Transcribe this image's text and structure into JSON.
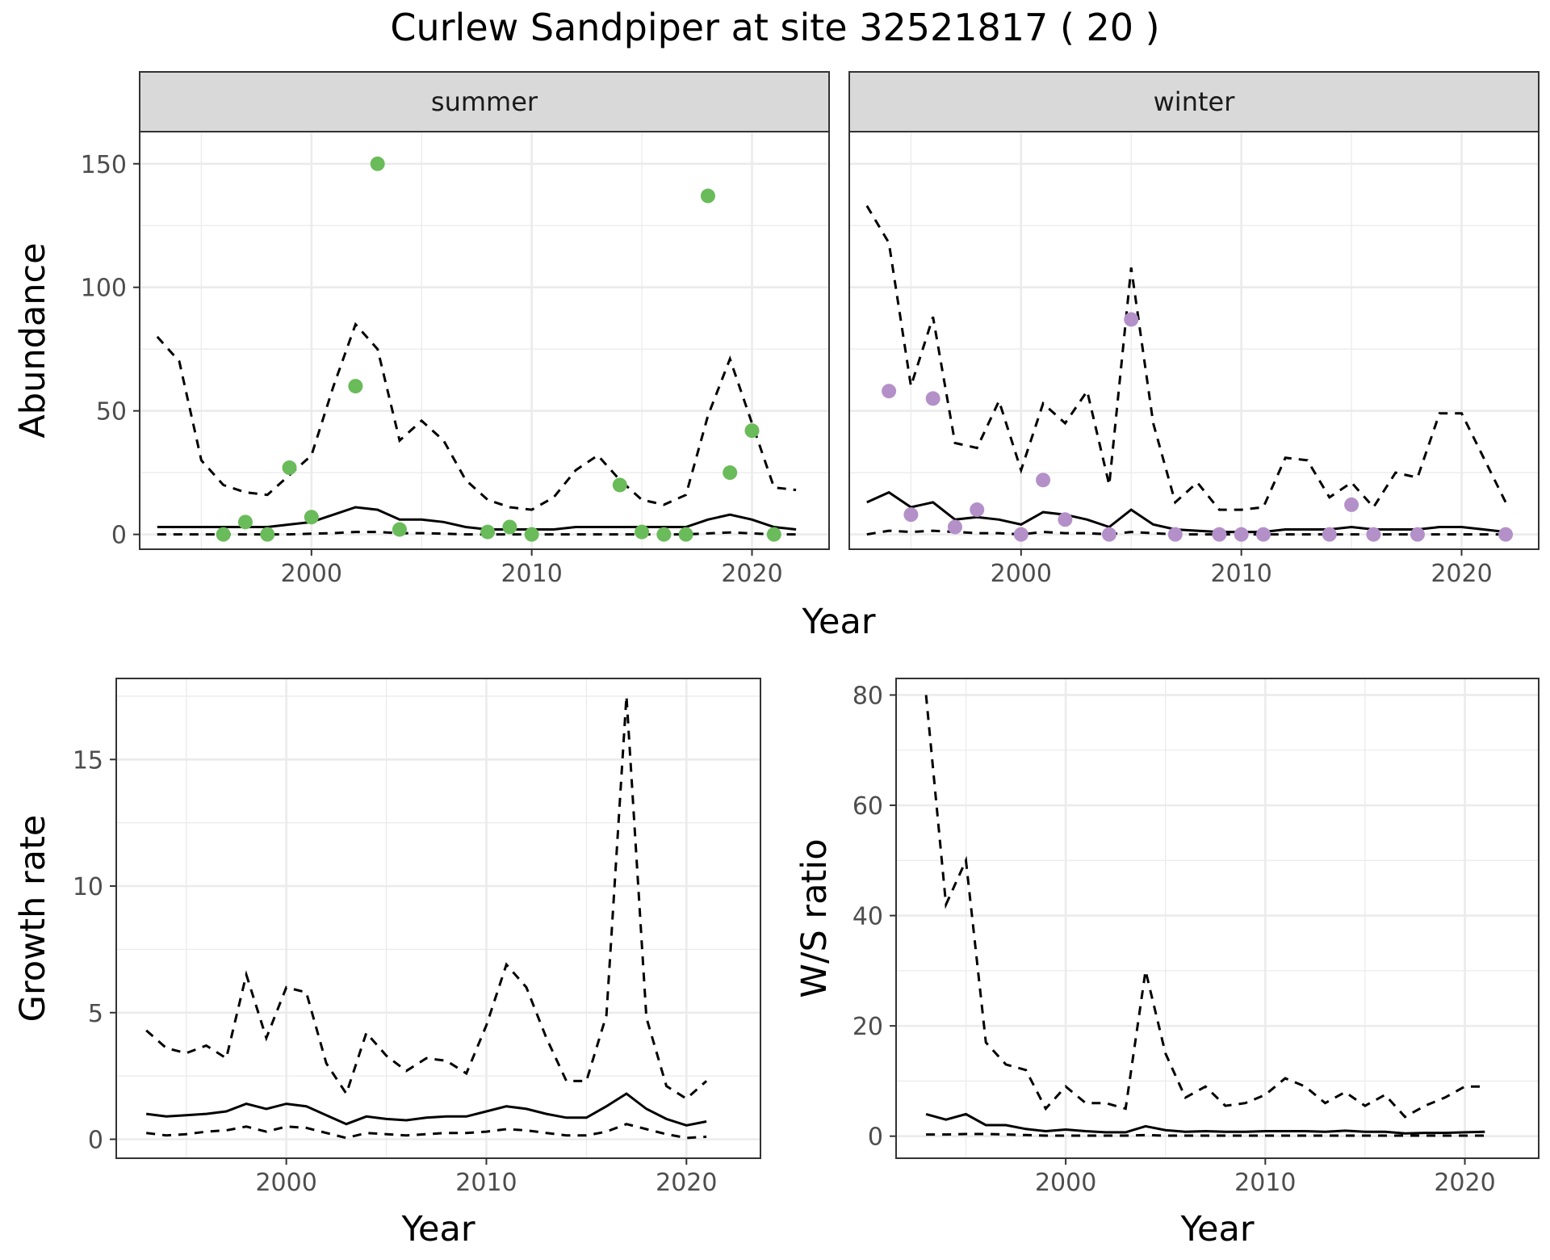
{
  "title": "Curlew Sandpiper at site 32521817 ( 20 )",
  "colors": {
    "summer_points": "#6abb5a",
    "winter_points": "#b490c9",
    "lines": "#000000"
  },
  "chart_data": [
    {
      "type": "line",
      "facet": "summer",
      "ylabel": "Abundance",
      "xlabel": "Year",
      "xlim": [
        1992.2,
        2023.5
      ],
      "ylim": [
        -6,
        163
      ],
      "xticks": [
        2000,
        2010,
        2020
      ],
      "yticks": [
        0,
        50,
        100,
        150
      ],
      "grid": true,
      "lines": [
        {
          "style": "dashed",
          "x": [
            1993,
            1994,
            1995,
            1996,
            1997,
            1998,
            1999,
            2000,
            2001,
            2002,
            2003,
            2004,
            2005,
            2006,
            2007,
            2008,
            2009,
            2010,
            2011,
            2012,
            2013,
            2014,
            2015,
            2016,
            2017,
            2018,
            2019,
            2020,
            2021,
            2022
          ],
          "y": [
            80,
            70,
            30,
            20,
            17,
            16,
            24,
            32,
            60,
            85,
            75,
            38,
            46,
            38,
            22,
            14,
            11,
            10,
            15,
            26,
            32,
            22,
            14,
            12,
            16,
            48,
            71,
            45,
            19,
            18
          ]
        },
        {
          "style": "solid",
          "x": [
            1993,
            1994,
            1995,
            1996,
            1997,
            1998,
            1999,
            2000,
            2001,
            2002,
            2003,
            2004,
            2005,
            2006,
            2007,
            2008,
            2009,
            2010,
            2011,
            2012,
            2013,
            2014,
            2015,
            2016,
            2017,
            2018,
            2019,
            2020,
            2021,
            2022
          ],
          "y": [
            3,
            3,
            3,
            3,
            3,
            3,
            4,
            5,
            8,
            11,
            10,
            6,
            6,
            5,
            3,
            2,
            2,
            2,
            2,
            3,
            3,
            3,
            3,
            3,
            3,
            6,
            8,
            6,
            3,
            2
          ]
        },
        {
          "style": "dashed",
          "x": [
            1993,
            1994,
            1995,
            1996,
            1997,
            1998,
            1999,
            2000,
            2001,
            2002,
            2003,
            2004,
            2005,
            2006,
            2007,
            2008,
            2009,
            2010,
            2011,
            2012,
            2013,
            2014,
            2015,
            2016,
            2017,
            2018,
            2019,
            2020,
            2021,
            2022
          ],
          "y": [
            0,
            0,
            0,
            0,
            0,
            0,
            0,
            0.3,
            0.5,
            1,
            1,
            0.5,
            0.5,
            0.3,
            0,
            0,
            0,
            0,
            0,
            0,
            0,
            0,
            0,
            0,
            0,
            0.4,
            0.8,
            0.4,
            0,
            0
          ]
        }
      ],
      "points": {
        "x": [
          1996,
          1997,
          1998,
          1999,
          2000,
          2002,
          2003,
          2004,
          2008,
          2009,
          2010,
          2014,
          2015,
          2016,
          2017,
          2018,
          2019,
          2020,
          2021
        ],
        "y": [
          0,
          5,
          0,
          27,
          7,
          60,
          150,
          2,
          1,
          3,
          0,
          20,
          1,
          0,
          0,
          137,
          25,
          42,
          0
        ]
      }
    },
    {
      "type": "line",
      "facet": "winter",
      "ylabel": "",
      "xlabel": "Year",
      "xlim": [
        1992.2,
        2023.5
      ],
      "ylim": [
        -6,
        163
      ],
      "xticks": [
        2000,
        2010,
        2020
      ],
      "yticks": [
        0,
        50,
        100,
        150
      ],
      "grid": true,
      "lines": [
        {
          "style": "dashed",
          "x": [
            1993,
            1994,
            1995,
            1996,
            1997,
            1998,
            1999,
            2000,
            2001,
            2002,
            2003,
            2004,
            2005,
            2006,
            2007,
            2008,
            2009,
            2010,
            2011,
            2012,
            2013,
            2014,
            2015,
            2016,
            2017,
            2018,
            2019,
            2020,
            2021,
            2022
          ],
          "y": [
            133,
            118,
            60,
            88,
            37,
            35,
            54,
            26,
            53,
            45,
            58,
            20,
            108,
            45,
            13,
            21,
            10,
            10,
            11,
            31,
            30,
            15,
            21,
            11,
            25,
            23,
            49,
            49,
            31,
            13
          ]
        },
        {
          "style": "solid",
          "x": [
            1993,
            1994,
            1995,
            1996,
            1997,
            1998,
            1999,
            2000,
            2001,
            2002,
            2003,
            2004,
            2005,
            2006,
            2007,
            2008,
            2009,
            2010,
            2011,
            2012,
            2013,
            2014,
            2015,
            2016,
            2017,
            2018,
            2019,
            2020,
            2021,
            2022
          ],
          "y": [
            13,
            17,
            11,
            13,
            6,
            7,
            6,
            4,
            9,
            8,
            6,
            3,
            10,
            4,
            2,
            1.5,
            1,
            1,
            1,
            2,
            2,
            2,
            3,
            2,
            2,
            2,
            3,
            3,
            2,
            1
          ]
        },
        {
          "style": "dashed",
          "x": [
            1993,
            1994,
            1995,
            1996,
            1997,
            1998,
            1999,
            2000,
            2001,
            2002,
            2003,
            2004,
            2005,
            2006,
            2007,
            2008,
            2009,
            2010,
            2011,
            2012,
            2013,
            2014,
            2015,
            2016,
            2017,
            2018,
            2019,
            2020,
            2021,
            2022
          ],
          "y": [
            0,
            1.5,
            1,
            1.5,
            1,
            0.5,
            0.5,
            0,
            1,
            0.5,
            0.5,
            0,
            1,
            0.5,
            0,
            0,
            0,
            0,
            0,
            0,
            0,
            0,
            0,
            0,
            0,
            0,
            0,
            0,
            0,
            0
          ]
        }
      ],
      "points": {
        "x": [
          1994,
          1995,
          1996,
          1997,
          1998,
          2000,
          2001,
          2002,
          2004,
          2005,
          2007,
          2009,
          2010,
          2011,
          2014,
          2015,
          2016,
          2018,
          2022
        ],
        "y": [
          58,
          8,
          55,
          3,
          10,
          0,
          22,
          6,
          0,
          87,
          0,
          0,
          0,
          0,
          0,
          12,
          0,
          0,
          0
        ]
      }
    },
    {
      "type": "line",
      "ylabel": "Growth rate",
      "xlabel": "Year",
      "xlim": [
        1991.5,
        2023.7
      ],
      "ylim": [
        -0.75,
        18.2
      ],
      "xticks": [
        2000,
        2010,
        2020
      ],
      "yticks": [
        0,
        5,
        10,
        15
      ],
      "grid": true,
      "lines": [
        {
          "style": "dashed",
          "x": [
            1993,
            1994,
            1995,
            1996,
            1997,
            1998,
            1999,
            2000,
            2001,
            2002,
            2003,
            2004,
            2005,
            2006,
            2007,
            2008,
            2009,
            2010,
            2011,
            2012,
            2013,
            2014,
            2015,
            2016,
            2017,
            2018,
            2019,
            2020,
            2021
          ],
          "y": [
            4.3,
            3.6,
            3.4,
            3.7,
            3.2,
            6.5,
            4,
            6,
            5.8,
            3,
            1.8,
            4.2,
            3.3,
            2.7,
            3.2,
            3.1,
            2.6,
            4.5,
            6.9,
            6,
            4,
            2.3,
            2.3,
            4.9,
            17.5,
            4.8,
            2.1,
            1.6,
            2.3
          ]
        },
        {
          "style": "solid",
          "x": [
            1993,
            1994,
            1995,
            1996,
            1997,
            1998,
            1999,
            2000,
            2001,
            2002,
            2003,
            2004,
            2005,
            2006,
            2007,
            2008,
            2009,
            2010,
            2011,
            2012,
            2013,
            2014,
            2015,
            2016,
            2017,
            2018,
            2019,
            2020,
            2021
          ],
          "y": [
            1,
            0.9,
            0.95,
            1,
            1.1,
            1.4,
            1.2,
            1.4,
            1.3,
            0.95,
            0.6,
            0.9,
            0.8,
            0.75,
            0.85,
            0.9,
            0.9,
            1.1,
            1.3,
            1.2,
            1,
            0.85,
            0.85,
            1.3,
            1.8,
            1.2,
            0.8,
            0.55,
            0.7
          ]
        },
        {
          "style": "dashed",
          "x": [
            1993,
            1994,
            1995,
            1996,
            1997,
            1998,
            1999,
            2000,
            2001,
            2002,
            2003,
            2004,
            2005,
            2006,
            2007,
            2008,
            2009,
            2010,
            2011,
            2012,
            2013,
            2014,
            2015,
            2016,
            2017,
            2018,
            2019,
            2020,
            2021
          ],
          "y": [
            0.25,
            0.15,
            0.2,
            0.3,
            0.35,
            0.5,
            0.3,
            0.5,
            0.45,
            0.25,
            0.05,
            0.25,
            0.2,
            0.15,
            0.2,
            0.25,
            0.25,
            0.3,
            0.4,
            0.35,
            0.25,
            0.15,
            0.15,
            0.3,
            0.6,
            0.4,
            0.2,
            0.05,
            0.1
          ]
        }
      ]
    },
    {
      "type": "line",
      "ylabel": "W/S ratio",
      "xlabel": "Year",
      "xlim": [
        1991.5,
        2023.7
      ],
      "ylim": [
        -4,
        83
      ],
      "xticks": [
        2000,
        2010,
        2020
      ],
      "yticks": [
        0,
        20,
        40,
        60,
        80
      ],
      "grid": true,
      "lines": [
        {
          "style": "dashed",
          "x": [
            1993,
            1994,
            1995,
            1996,
            1997,
            1998,
            1999,
            2000,
            2001,
            2002,
            2003,
            2004,
            2005,
            2006,
            2007,
            2008,
            2009,
            2010,
            2011,
            2012,
            2013,
            2014,
            2015,
            2016,
            2017,
            2018,
            2019,
            2020,
            2021
          ],
          "y": [
            80,
            42,
            50,
            17,
            13,
            12,
            5,
            9,
            6,
            6,
            5,
            30,
            15,
            7,
            9,
            5.5,
            6,
            7.5,
            10.5,
            9,
            6,
            8,
            5.5,
            7.5,
            3.5,
            5.5,
            7,
            9,
            9
          ]
        },
        {
          "style": "solid",
          "x": [
            1993,
            1994,
            1995,
            1996,
            1997,
            1998,
            1999,
            2000,
            2001,
            2002,
            2003,
            2004,
            2005,
            2006,
            2007,
            2008,
            2009,
            2010,
            2011,
            2012,
            2013,
            2014,
            2015,
            2016,
            2017,
            2018,
            2019,
            2020,
            2021
          ],
          "y": [
            4,
            3,
            4,
            2,
            2,
            1.3,
            0.9,
            1.2,
            0.9,
            0.7,
            0.7,
            1.8,
            1.1,
            0.8,
            0.9,
            0.8,
            0.8,
            0.9,
            0.9,
            0.9,
            0.8,
            1,
            0.8,
            0.8,
            0.5,
            0.6,
            0.6,
            0.7,
            0.8
          ]
        },
        {
          "style": "dashed",
          "x": [
            1993,
            1994,
            1995,
            1996,
            1997,
            1998,
            1999,
            2000,
            2001,
            2002,
            2003,
            2004,
            2005,
            2006,
            2007,
            2008,
            2009,
            2010,
            2011,
            2012,
            2013,
            2014,
            2015,
            2016,
            2017,
            2018,
            2019,
            2020,
            2021
          ],
          "y": [
            0.3,
            0.3,
            0.4,
            0.4,
            0.3,
            0.2,
            0.1,
            0.1,
            0.1,
            0.1,
            0.1,
            0.2,
            0.1,
            0.1,
            0.1,
            0.1,
            0.1,
            0.1,
            0.1,
            0.1,
            0.1,
            0.1,
            0.1,
            0.1,
            0.1,
            0.1,
            0.1,
            0.1,
            0.1
          ]
        }
      ]
    }
  ]
}
